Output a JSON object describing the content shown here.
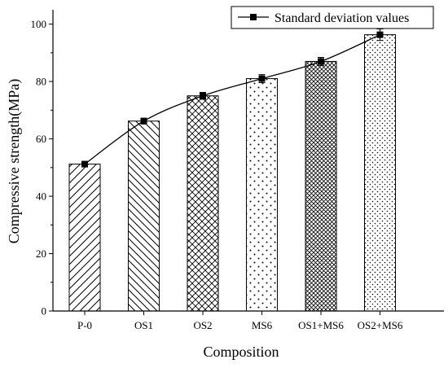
{
  "chart_data": {
    "type": "bar",
    "categories": [
      "P-0",
      "OS1",
      "OS2",
      "MS6",
      "OS1+MS6",
      "OS2+MS6"
    ],
    "values": [
      51.2,
      66.2,
      75.0,
      81.0,
      87.0,
      96.3
    ],
    "errors": [
      0.6,
      1.0,
      1.2,
      1.4,
      1.4,
      2.0
    ],
    "xlabel": "Composition",
    "ylabel": "Compressive strength(MPa)",
    "ylim": [
      0,
      105
    ],
    "yticks": [
      0,
      20,
      40,
      60,
      80,
      100
    ],
    "grid": false,
    "legend": {
      "entry": "Standard deviation values",
      "placement": "top-right"
    },
    "overlay_line": {
      "name": "Standard deviation values",
      "values": [
        51.2,
        66.2,
        75.0,
        81.0,
        87.0,
        96.3
      ]
    },
    "bar_patterns": [
      "diagonal-forward-sparse",
      "diagonal-back",
      "crosshatch",
      "dots-sparse",
      "crosshatch-dense",
      "dots-dense"
    ],
    "colors": {
      "bar_fill": "#ffffff",
      "stroke": "#000000"
    }
  }
}
